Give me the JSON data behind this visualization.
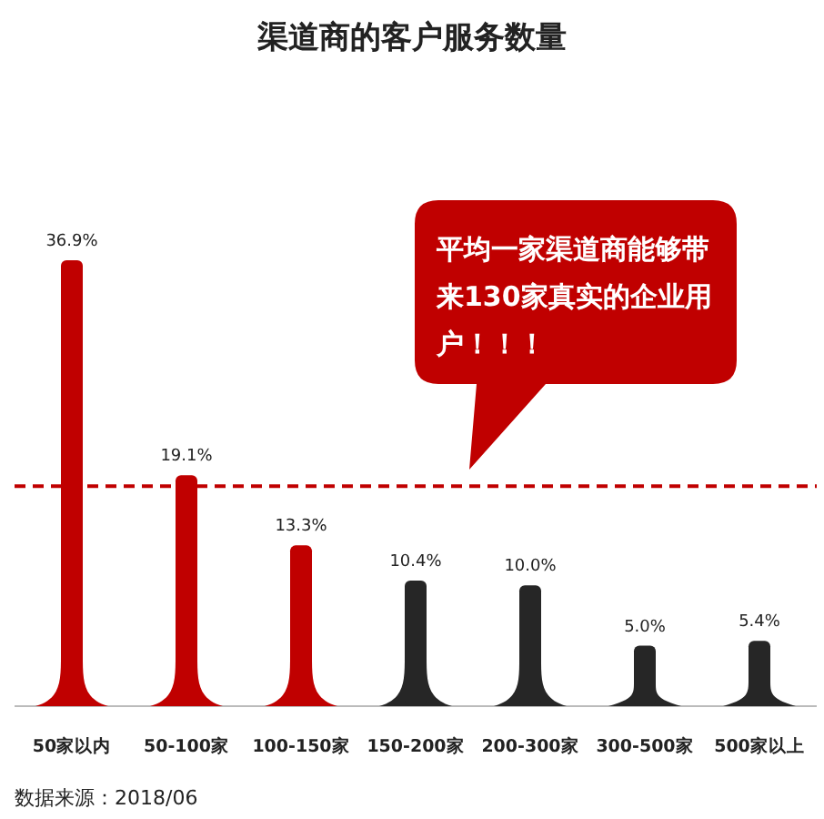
{
  "chart_data": {
    "type": "bar",
    "title": "渠道商的客户服务数量",
    "categories": [
      "50家以内",
      "50-100家",
      "100-150家",
      "150-200家",
      "200-300家",
      "300-500家",
      "500家以上"
    ],
    "values": [
      36.9,
      19.1,
      13.3,
      10.4,
      10.0,
      5.0,
      5.4
    ],
    "colors": [
      "#c00000",
      "#c00000",
      "#c00000",
      "#262626",
      "#262626",
      "#262626",
      "#262626"
    ],
    "value_labels": [
      "36.9%",
      "19.1%",
      "13.3%",
      "10.4%",
      "10.0%",
      "5.0%",
      "5.4%"
    ],
    "ref_lines": [
      {
        "axis": "y",
        "value": 18.2,
        "color": "#c00000",
        "line_style": "dashed"
      }
    ],
    "annotations": [
      "平均一家渠道商能够带来130家真实的企业用户！！！",
      "数据来源：2018/06"
    ]
  }
}
